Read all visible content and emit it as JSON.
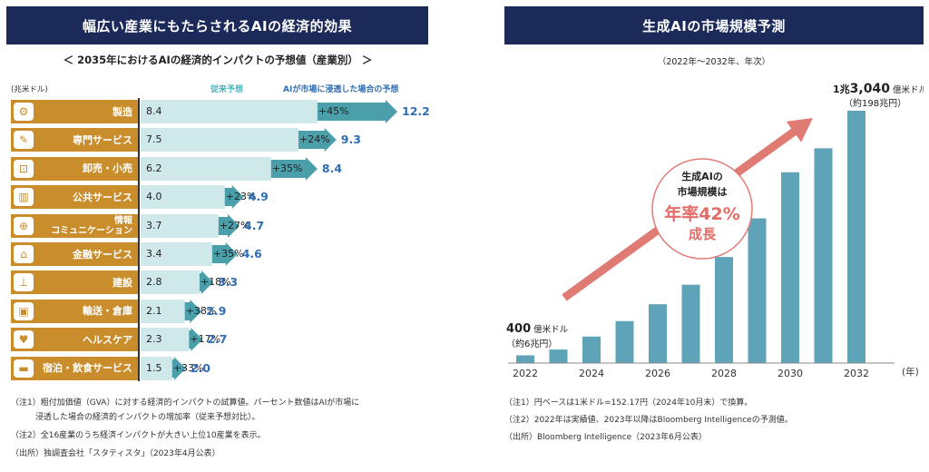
{
  "left": {
    "header": "幅広い産業にもたらされるAIの経済的効果",
    "subtitle": "＜ 2035年におけるAIの経済的インパクトの予想値（産業別） ＞",
    "unit": "(兆米ドル)",
    "legend_conventional": "従来予想",
    "legend_ai": "AIが市場に浸透した場合の予想",
    "notes": [
      "（注1）粗付加価値（GVA）に対する経済的インパクトの試算値。パーセント数値はAIが市場に",
      "　　　浸透した場合の経済的インパクトの増加率（従来予想対比）。",
      "（注2）全16産業のうち経済インパクトが大きい上位10産業を表示。",
      "（出所）独調査会社「スタティスタ」（2023年4月公表）"
    ]
  },
  "right": {
    "header": "生成AIの市場規模予測",
    "subtitle": "（2022年～2032年、年次）",
    "start_label_1": "400",
    "start_label_1_unit": "億米ドル",
    "start_label_2": "（約6兆円）",
    "end_label_1a": "1兆",
    "end_label_1b": "3,040",
    "end_label_1_unit": "億米ドル",
    "end_label_2": "（約198兆円）",
    "growth_label_1": "生成AIの",
    "growth_label_2": "市場規模は",
    "growth_label_3": "年率42%",
    "growth_label_4": "成長",
    "x_unit": "(年)",
    "notes": [
      "（注1）円ベースは1米ドル=152.17円（2024年10月末）で換算。",
      "（注2）2022年は実績値、2023年以降はBloomberg Intelligenceの予測値。",
      "（出所）Bloomberg Intelligence（2023年6月公表）"
    ]
  },
  "colors": {
    "header_bg": "#1c2a5a",
    "category_bg": "#c98d2c",
    "conventional_bar": "#cfe8ea",
    "ai_arrow": "#4a9faa",
    "ai_value_text": "#2f6db5",
    "market_bar": "#5fa3b8",
    "growth_arrow": "#e07b74",
    "growth_text": "#e26c66"
  },
  "chart_data": [
    {
      "type": "bar",
      "title": "＜ 2035年におけるAIの経済的インパクトの予想値（産業別） ＞",
      "ylabel": "(兆米ドル)",
      "categories": [
        {
          "label": "製造",
          "icon": "robot-arm-icon"
        },
        {
          "label": "専門サービス",
          "icon": "pen-icon"
        },
        {
          "label": "卸売・小売",
          "icon": "cart-icon"
        },
        {
          "label": "公共サービス",
          "icon": "building-icon"
        },
        {
          "label": "情報\nコミュニケーション",
          "icon": "network-icon"
        },
        {
          "label": "金融サービス",
          "icon": "bank-icon"
        },
        {
          "label": "建設",
          "icon": "crane-icon"
        },
        {
          "label": "輸送・倉庫",
          "icon": "truck-icon"
        },
        {
          "label": "ヘルスケア",
          "icon": "heart-icon"
        },
        {
          "label": "宿泊・飲食サービス",
          "icon": "bed-icon"
        }
      ],
      "series": [
        {
          "name": "従来予想",
          "values": [
            8.4,
            7.5,
            6.2,
            4.0,
            3.7,
            3.4,
            2.8,
            2.1,
            2.3,
            1.5
          ]
        },
        {
          "name": "AIが市場に浸透した場合の予想",
          "values": [
            12.2,
            9.3,
            8.4,
            4.9,
            4.7,
            4.6,
            3.3,
            2.9,
            2.7,
            2.0
          ]
        }
      ],
      "increase_labels": [
        "+45%",
        "+24%",
        "+35%",
        "+23%",
        "+27%",
        "+35%",
        "+18%",
        "+38%",
        "+17%",
        "+33%"
      ]
    },
    {
      "type": "bar",
      "title": "生成AIの市場規模予測",
      "xlabel": "(年)",
      "x": [
        2022,
        2023,
        2024,
        2025,
        2026,
        2027,
        2028,
        2029,
        2030,
        2031,
        2032
      ],
      "x_tick_labels": [
        "2022",
        "2024",
        "2026",
        "2028",
        "2030",
        "2032"
      ],
      "values": [
        400,
        700,
        1370,
        2170,
        3040,
        4050,
        5480,
        7480,
        9860,
        11100,
        13040
      ],
      "unit": "億米ドル",
      "ylim": [
        0,
        13040
      ],
      "grid": false
    }
  ]
}
